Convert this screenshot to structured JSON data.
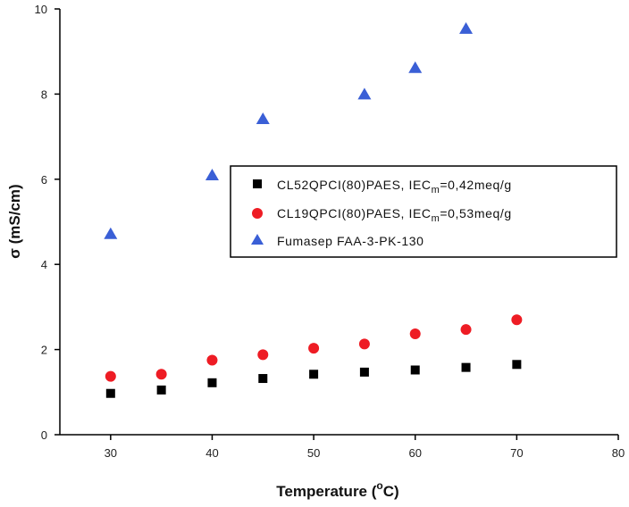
{
  "chart_data": {
    "type": "scatter",
    "xlabel": {
      "main": "Temperature (",
      "superscript": "o",
      "unit": "C)"
    },
    "ylabel": "σ (mS/cm)",
    "xlim": [
      25,
      80
    ],
    "ylim": [
      0,
      10
    ],
    "xticks": [
      30,
      40,
      50,
      60,
      70,
      80
    ],
    "yticks": [
      0,
      2,
      4,
      6,
      8,
      10
    ],
    "grid": false,
    "legend_position": "right",
    "series": [
      {
        "name_prefix": "CL52QPCI(80)PAES, IEC",
        "name_sub": "m",
        "name_suffix": "=0,42meq/g",
        "marker": "square",
        "color": "#000000",
        "x": [
          30,
          35,
          40,
          45,
          50,
          55,
          60,
          65,
          70
        ],
        "y": [
          0.97,
          1.05,
          1.22,
          1.32,
          1.42,
          1.47,
          1.52,
          1.58,
          1.65
        ]
      },
      {
        "name_prefix": "CL19QPCI(80)PAES, IEC",
        "name_sub": "m",
        "name_suffix": "=0,53meq/g",
        "marker": "circle",
        "color": "#ee1c24",
        "x": [
          30,
          35,
          40,
          45,
          50,
          55,
          60,
          65,
          70
        ],
        "y": [
          1.37,
          1.42,
          1.75,
          1.88,
          2.03,
          2.13,
          2.37,
          2.47,
          2.7
        ]
      },
      {
        "name": "Fumasep FAA-3-PK-130",
        "marker": "triangle",
        "color": "#3a5fd6",
        "x": [
          30,
          40,
          45,
          55,
          60,
          65
        ],
        "y": [
          4.7,
          6.08,
          7.4,
          7.98,
          8.6,
          9.52
        ]
      }
    ]
  }
}
